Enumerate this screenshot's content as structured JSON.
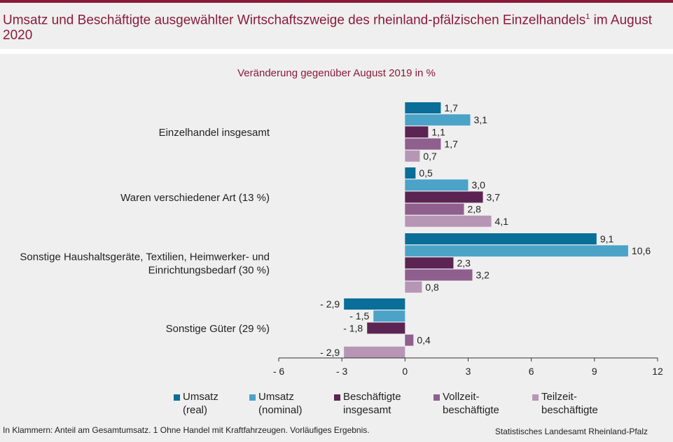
{
  "title": "Umsatz und Beschäftigte ausgewählter Wirtschaftszweige des rheinland-pfälzischen Einzelhandels",
  "title_superscript": "1",
  "title_suffix": " im August 2020",
  "subtitle": "Veränderung gegenüber August 2019 in %",
  "footnote": "In Klammern: Anteil am Gesamtumsatz. 1 Ohne Handel mit Kraftfahrzeugen. Vorläufiges Ergebnis.",
  "source": "Statistisches Landesamt Rheinland-Pfalz",
  "legend": [
    {
      "line1": "Umsatz",
      "line2": "(real)",
      "color": "#0a6e99"
    },
    {
      "line1": "Umsatz",
      "line2": "(nominal)",
      "color": "#4ba3c8"
    },
    {
      "line1": "Beschäftigte",
      "line2": "insgesamt",
      "color": "#5c2452"
    },
    {
      "line1": "Vollzeit-",
      "line2": "beschäftigte",
      "color": "#8f5f8e"
    },
    {
      "line1": "Teilzeit-",
      "line2": "beschäftigte",
      "color": "#b796b5"
    }
  ],
  "chart_data": {
    "type": "bar",
    "orientation": "horizontal",
    "categories": [
      [
        "Einzelhandel insgesamt"
      ],
      [
        "Waren verschiedener Art (13 %)"
      ],
      [
        "Sonstige Haushaltsgeräte, Textilien, Heimwerker- und",
        "Einrichtungsbedarf (30 %)"
      ],
      [
        "Sonstige Güter (29 %)"
      ]
    ],
    "series": [
      {
        "name": "Umsatz (real)",
        "color": "#0a6e99",
        "values": [
          1.7,
          0.5,
          9.1,
          -2.9
        ],
        "labels": [
          "1,7",
          "0,5",
          "9,1",
          "- 2,9"
        ]
      },
      {
        "name": "Umsatz (nominal)",
        "color": "#4ba3c8",
        "values": [
          3.1,
          3.0,
          10.6,
          -1.5
        ],
        "labels": [
          "3,1",
          "3,0",
          "10,6",
          "- 1,5"
        ]
      },
      {
        "name": "Beschäftigte insgesamt",
        "color": "#5c2452",
        "values": [
          1.1,
          3.7,
          2.3,
          -1.8
        ],
        "labels": [
          "1,1",
          "3,7",
          "2,3",
          "- 1,8"
        ]
      },
      {
        "name": "Vollzeitbeschäftigte",
        "color": "#8f5f8e",
        "values": [
          1.7,
          2.8,
          3.2,
          0.4
        ],
        "labels": [
          "1,7",
          "2,8",
          "3,2",
          "0,4"
        ]
      },
      {
        "name": "Teilzeitbeschäftigte",
        "color": "#b796b5",
        "values": [
          0.7,
          4.1,
          0.8,
          -2.9
        ],
        "labels": [
          "0,7",
          "4,1",
          "0,8",
          "- 2,9"
        ]
      }
    ],
    "xlim": [
      -6,
      12
    ],
    "ticks": [
      -6,
      -3,
      0,
      3,
      6,
      9,
      12
    ],
    "tick_labels": [
      "- 6",
      "- 3",
      "0",
      "3",
      "6",
      "9",
      "12"
    ],
    "grid": false
  }
}
